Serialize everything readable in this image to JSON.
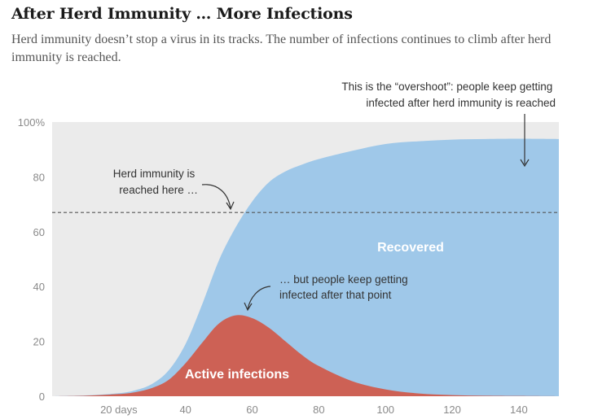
{
  "header": {
    "title": "After Herd Immunity … More Infections",
    "subtitle": "Herd immunity doesn’t stop a virus in its tracks. The number of infections continues to climb after herd immunity is reached."
  },
  "chart_data": {
    "type": "area",
    "xlim": [
      0,
      152
    ],
    "ylim": [
      0,
      100
    ],
    "x_ticks": [
      {
        "value": 20,
        "label": "20 days"
      },
      {
        "value": 40,
        "label": "40"
      },
      {
        "value": 60,
        "label": "60"
      },
      {
        "value": 80,
        "label": "80"
      },
      {
        "value": 100,
        "label": "100"
      },
      {
        "value": 120,
        "label": "120"
      },
      {
        "value": 140,
        "label": "140"
      }
    ],
    "y_ticks": [
      {
        "value": 0,
        "label": "0"
      },
      {
        "value": 20,
        "label": "20"
      },
      {
        "value": 40,
        "label": "40"
      },
      {
        "value": 60,
        "label": "60"
      },
      {
        "value": 80,
        "label": "80"
      },
      {
        "value": 100,
        "label": "100%"
      }
    ],
    "herd_immunity_threshold": 67,
    "series": [
      {
        "name": "Active infections",
        "color": "#cd6155",
        "x": [
          0,
          10,
          20,
          25,
          30,
          35,
          40,
          45,
          50,
          55,
          60,
          65,
          70,
          75,
          80,
          90,
          100,
          110,
          120,
          130,
          140,
          152
        ],
        "values": [
          0,
          0.2,
          0.8,
          1.5,
          3,
          6,
          12,
          19.5,
          26.5,
          29.5,
          28.5,
          25,
          20,
          15,
          11,
          5.5,
          2.5,
          1,
          0.4,
          0.2,
          0.1,
          0
        ]
      },
      {
        "name": "Recovered",
        "color": "#9fc8e9",
        "x": [
          0,
          10,
          20,
          25,
          30,
          35,
          40,
          45,
          50,
          55,
          60,
          65,
          70,
          75,
          80,
          90,
          100,
          110,
          120,
          130,
          140,
          152
        ],
        "values": [
          0,
          0.1,
          0.3,
          0.7,
          1.5,
          3.5,
          7,
          14,
          23,
          32,
          42.5,
          53,
          62,
          69.5,
          75.5,
          84,
          89.5,
          92,
          93.2,
          93.6,
          93.8,
          93.8
        ]
      }
    ],
    "annotations": {
      "herd": [
        "Herd immunity is",
        "reached here …"
      ],
      "after": [
        "… but people keep getting",
        "infected after that point"
      ],
      "overshoot": [
        "This is the “overshoot”: people keep getting",
        "infected after herd immunity is reached"
      ]
    },
    "region_labels": {
      "recovered": "Recovered",
      "active": "Active infections"
    },
    "colors": {
      "plot_background": "#ebebeb",
      "threshold_line": "#555555",
      "arrow": "#333333"
    }
  }
}
